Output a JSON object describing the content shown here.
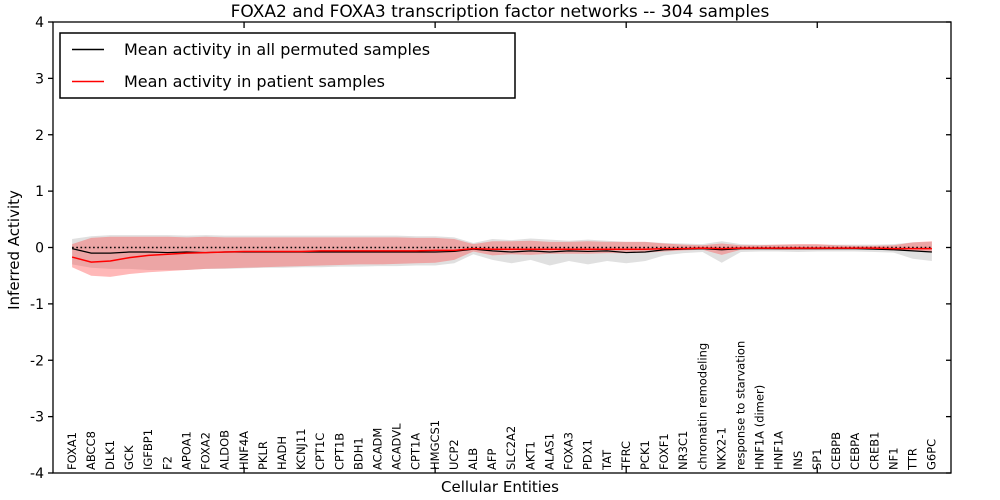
{
  "chart_data": {
    "type": "line",
    "title": "FOXA2 and FOXA3 transcription factor networks -- 304 samples",
    "xlabel": "Cellular Entities",
    "ylabel": "Inferred Activity",
    "ylim": [
      -4,
      4
    ],
    "yticks": [
      -4,
      -3,
      -2,
      -1,
      0,
      1,
      2,
      3,
      4
    ],
    "xtick_positions": [
      10,
      20,
      30,
      40
    ],
    "grid": false,
    "legend_position": "upper left",
    "zero_reference_line": 0,
    "categories": [
      "FOXA1",
      "ABCC8",
      "DLK1",
      "GCK",
      "IGFBP1",
      "F2",
      "APOA1",
      "FOXA2",
      "ALDOB",
      "HNF4A",
      "PKLR",
      "HADH",
      "KCNJ11",
      "CPT1C",
      "CPT1B",
      "BDH1",
      "ACADM",
      "ACADVL",
      "CPT1A",
      "HMGCS1",
      "UCP2",
      "ALB",
      "AFP",
      "SLC2A2",
      "AKT1",
      "ALAS1",
      "FOXA3",
      "PDX1",
      "TAT",
      "TFRC",
      "PCK1",
      "FOXF1",
      "NR3C1",
      "chromatin remodeling",
      "NKX2-1",
      "response to starvation",
      "HNF1A (dimer)",
      "HNF1A",
      "INS",
      "SP1",
      "CEBPB",
      "CEBPA",
      "CREB1",
      "NF1",
      "TTR",
      "G6PC"
    ],
    "series": [
      {
        "name": "Mean activity in all permuted samples",
        "color": "#000000",
        "style": "solid",
        "values": [
          -0.02,
          -0.1,
          -0.1,
          -0.08,
          -0.08,
          -0.09,
          -0.08,
          -0.09,
          -0.08,
          -0.08,
          -0.08,
          -0.08,
          -0.08,
          -0.08,
          -0.08,
          -0.08,
          -0.08,
          -0.08,
          -0.08,
          -0.08,
          -0.07,
          -0.03,
          -0.06,
          -0.08,
          -0.06,
          -0.08,
          -0.06,
          -0.07,
          -0.06,
          -0.09,
          -0.08,
          -0.04,
          -0.03,
          -0.02,
          -0.04,
          -0.02,
          -0.02,
          -0.02,
          -0.02,
          -0.02,
          -0.02,
          -0.02,
          -0.03,
          -0.04,
          -0.06,
          -0.08
        ]
      },
      {
        "name": "Mean activity in patient samples",
        "color": "#ff0000",
        "style": "solid",
        "values": [
          -0.17,
          -0.26,
          -0.24,
          -0.18,
          -0.14,
          -0.12,
          -0.1,
          -0.09,
          -0.08,
          -0.07,
          -0.07,
          -0.07,
          -0.07,
          -0.06,
          -0.06,
          -0.06,
          -0.06,
          -0.06,
          -0.06,
          -0.05,
          -0.05,
          -0.02,
          -0.03,
          -0.03,
          -0.03,
          -0.03,
          -0.03,
          -0.03,
          -0.03,
          -0.03,
          -0.03,
          -0.02,
          -0.02,
          -0.01,
          -0.02,
          -0.01,
          -0.01,
          -0.01,
          -0.01,
          -0.01,
          -0.01,
          -0.01,
          -0.01,
          -0.02,
          -0.02,
          -0.02
        ]
      }
    ],
    "bands": [
      {
        "name": "permuted-samples-band",
        "color": "#999999",
        "opacity": 0.3,
        "upper": [
          0.15,
          0.2,
          0.22,
          0.22,
          0.22,
          0.22,
          0.21,
          0.22,
          0.21,
          0.21,
          0.21,
          0.21,
          0.21,
          0.21,
          0.21,
          0.21,
          0.21,
          0.21,
          0.2,
          0.2,
          0.18,
          0.08,
          0.15,
          0.13,
          0.16,
          0.14,
          0.12,
          0.14,
          0.12,
          0.1,
          0.1,
          0.08,
          0.07,
          0.06,
          0.11,
          0.06,
          0.05,
          0.05,
          0.05,
          0.05,
          0.05,
          0.05,
          0.05,
          0.06,
          0.09,
          0.1
        ],
        "lower": [
          -0.3,
          -0.36,
          -0.38,
          -0.38,
          -0.4,
          -0.4,
          -0.4,
          -0.38,
          -0.38,
          -0.37,
          -0.36,
          -0.36,
          -0.35,
          -0.35,
          -0.34,
          -0.34,
          -0.33,
          -0.33,
          -0.32,
          -0.32,
          -0.28,
          -0.12,
          -0.22,
          -0.28,
          -0.22,
          -0.32,
          -0.24,
          -0.3,
          -0.24,
          -0.28,
          -0.24,
          -0.14,
          -0.1,
          -0.08,
          -0.27,
          -0.08,
          -0.07,
          -0.07,
          -0.08,
          -0.07,
          -0.07,
          -0.07,
          -0.08,
          -0.09,
          -0.2,
          -0.24
        ]
      },
      {
        "name": "patient-samples-band",
        "color": "#ff4444",
        "opacity": 0.38,
        "upper": [
          0.06,
          0.17,
          0.19,
          0.19,
          0.19,
          0.19,
          0.18,
          0.19,
          0.18,
          0.18,
          0.18,
          0.18,
          0.18,
          0.18,
          0.18,
          0.18,
          0.18,
          0.18,
          0.17,
          0.17,
          0.15,
          0.06,
          0.11,
          0.11,
          0.12,
          0.1,
          0.1,
          0.11,
          0.1,
          0.1,
          0.1,
          0.07,
          0.05,
          0.04,
          0.07,
          0.04,
          0.04,
          0.05,
          0.06,
          0.06,
          0.04,
          0.03,
          0.03,
          0.04,
          0.09,
          0.11
        ],
        "lower": [
          -0.35,
          -0.5,
          -0.52,
          -0.47,
          -0.44,
          -0.42,
          -0.4,
          -0.38,
          -0.37,
          -0.36,
          -0.35,
          -0.34,
          -0.33,
          -0.32,
          -0.31,
          -0.3,
          -0.3,
          -0.29,
          -0.28,
          -0.27,
          -0.22,
          -0.07,
          -0.14,
          -0.12,
          -0.13,
          -0.11,
          -0.11,
          -0.11,
          -0.1,
          -0.1,
          -0.09,
          -0.07,
          -0.05,
          -0.04,
          -0.13,
          -0.04,
          -0.03,
          -0.04,
          -0.04,
          -0.04,
          -0.03,
          -0.03,
          -0.03,
          -0.04,
          -0.06,
          -0.07
        ]
      }
    ],
    "colors": {
      "axis": "#000000",
      "background": "#ffffff"
    }
  }
}
